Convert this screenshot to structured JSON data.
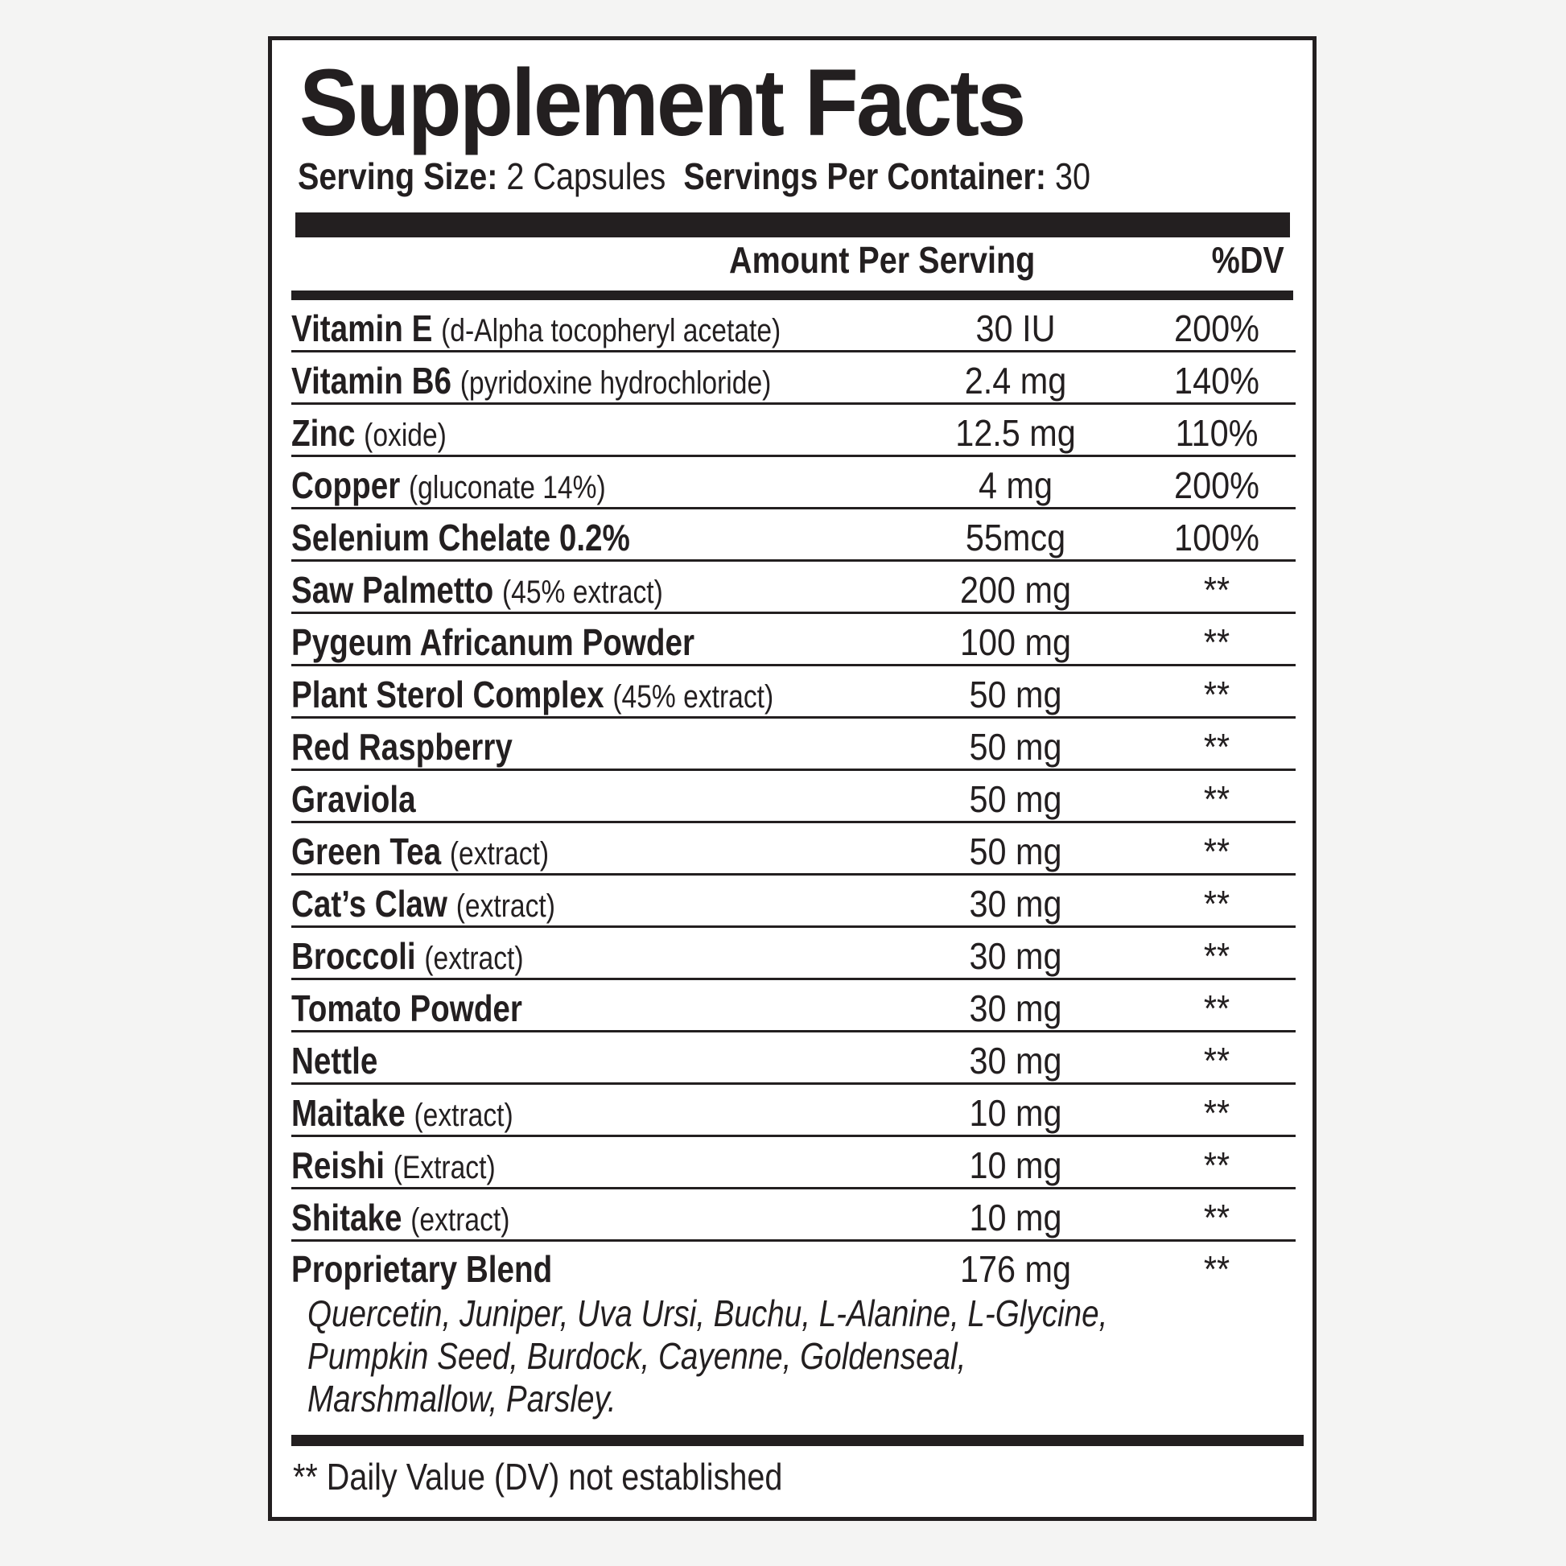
{
  "title": "Supplement Facts",
  "serving": {
    "size_label": "Serving Size:",
    "size_value": "2 Capsules",
    "per_container_label": "Servings Per Container:",
    "per_container_value": "30"
  },
  "header": {
    "amount": "Amount Per Serving",
    "dv": "%DV"
  },
  "rows": [
    {
      "name": "Vitamin E",
      "detail": "(d-Alpha tocopheryl acetate)",
      "amount": "30 IU",
      "dv": "200%"
    },
    {
      "name": "Vitamin B6",
      "detail": "(pyridoxine hydrochloride)",
      "amount": "2.4 mg",
      "dv": "140%"
    },
    {
      "name": "Zinc",
      "detail": "(oxide)",
      "amount": "12.5 mg",
      "dv": "110%"
    },
    {
      "name": "Copper",
      "detail": "(gluconate 14%)",
      "amount": "4 mg",
      "dv": "200%"
    },
    {
      "name": "Selenium Chelate 0.2%",
      "detail": "",
      "amount": "55mcg",
      "dv": "100%"
    },
    {
      "name": "Saw Palmetto",
      "detail": "(45% extract)",
      "amount": "200 mg",
      "dv": "**"
    },
    {
      "name": "Pygeum Africanum Powder",
      "detail": "",
      "amount": "100 mg",
      "dv": "**"
    },
    {
      "name": "Plant Sterol Complex",
      "detail": "(45% extract)",
      "amount": "50 mg",
      "dv": "**"
    },
    {
      "name": "Red Raspberry",
      "detail": "",
      "amount": "50 mg",
      "dv": "**"
    },
    {
      "name": "Graviola",
      "detail": "",
      "amount": "50 mg",
      "dv": "**"
    },
    {
      "name": "Green Tea",
      "detail": "(extract)",
      "amount": "50 mg",
      "dv": "**"
    },
    {
      "name": "Cat’s Claw",
      "detail": "(extract)",
      "amount": "30 mg",
      "dv": "**"
    },
    {
      "name": "Broccoli",
      "detail": "(extract)",
      "amount": "30 mg",
      "dv": "**"
    },
    {
      "name": "Tomato Powder",
      "detail": "",
      "amount": "30 mg",
      "dv": "**"
    },
    {
      "name": "Nettle",
      "detail": "",
      "amount": "30 mg",
      "dv": "**"
    },
    {
      "name": "Maitake",
      "detail": "(extract)",
      "amount": "10 mg",
      "dv": "**"
    },
    {
      "name": "Reishi",
      "detail": "(Extract)",
      "amount": "10 mg",
      "dv": "**"
    },
    {
      "name": "Shitake",
      "detail": "(extract)",
      "amount": "10 mg",
      "dv": "**"
    }
  ],
  "blend": {
    "name": "Proprietary Blend",
    "amount": "176 mg",
    "dv": "**",
    "lines": [
      "Quercetin, Juniper, Uva Ursi, Buchu, L-Alanine, L-Glycine,",
      "Pumpkin Seed, Burdock, Cayenne, Goldenseal,",
      "Marshmallow, Parsley."
    ]
  },
  "footnote": "** Daily Value (DV) not established"
}
